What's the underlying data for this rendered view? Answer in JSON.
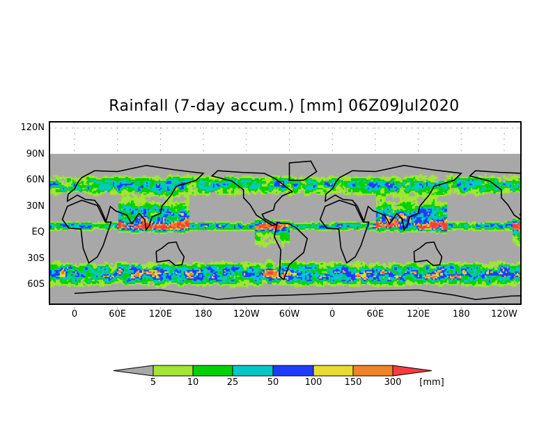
{
  "title": "Rainfall (7-day accum.) [mm] 06Z09Jul2020",
  "lat_labels": [
    "120N",
    "90N",
    "60N",
    "30N",
    "EQ",
    "30S",
    "60S"
  ],
  "lat_values": [
    120,
    90,
    60,
    30,
    0,
    -30,
    -60
  ],
  "lon_labels": [
    "0",
    "60E",
    "120E",
    "180",
    "120W",
    "60W",
    "0",
    "60E",
    "120E",
    "180",
    "120W"
  ],
  "lon_values": [
    0,
    60,
    120,
    180,
    240,
    300,
    360,
    420,
    480,
    540,
    600
  ],
  "colorbar": {
    "thresholds": [
      "5",
      "10",
      "25",
      "50",
      "100",
      "150",
      "300"
    ],
    "unit": "[mm]",
    "colors": {
      "below": "#a8a8a8",
      "c1": "#a0e632",
      "c2": "#00d200",
      "c3": "#00c8c8",
      "c4": "#1e3cff",
      "c5": "#e6dc32",
      "c6": "#f08228",
      "above": "#fa3c3c"
    }
  }
}
